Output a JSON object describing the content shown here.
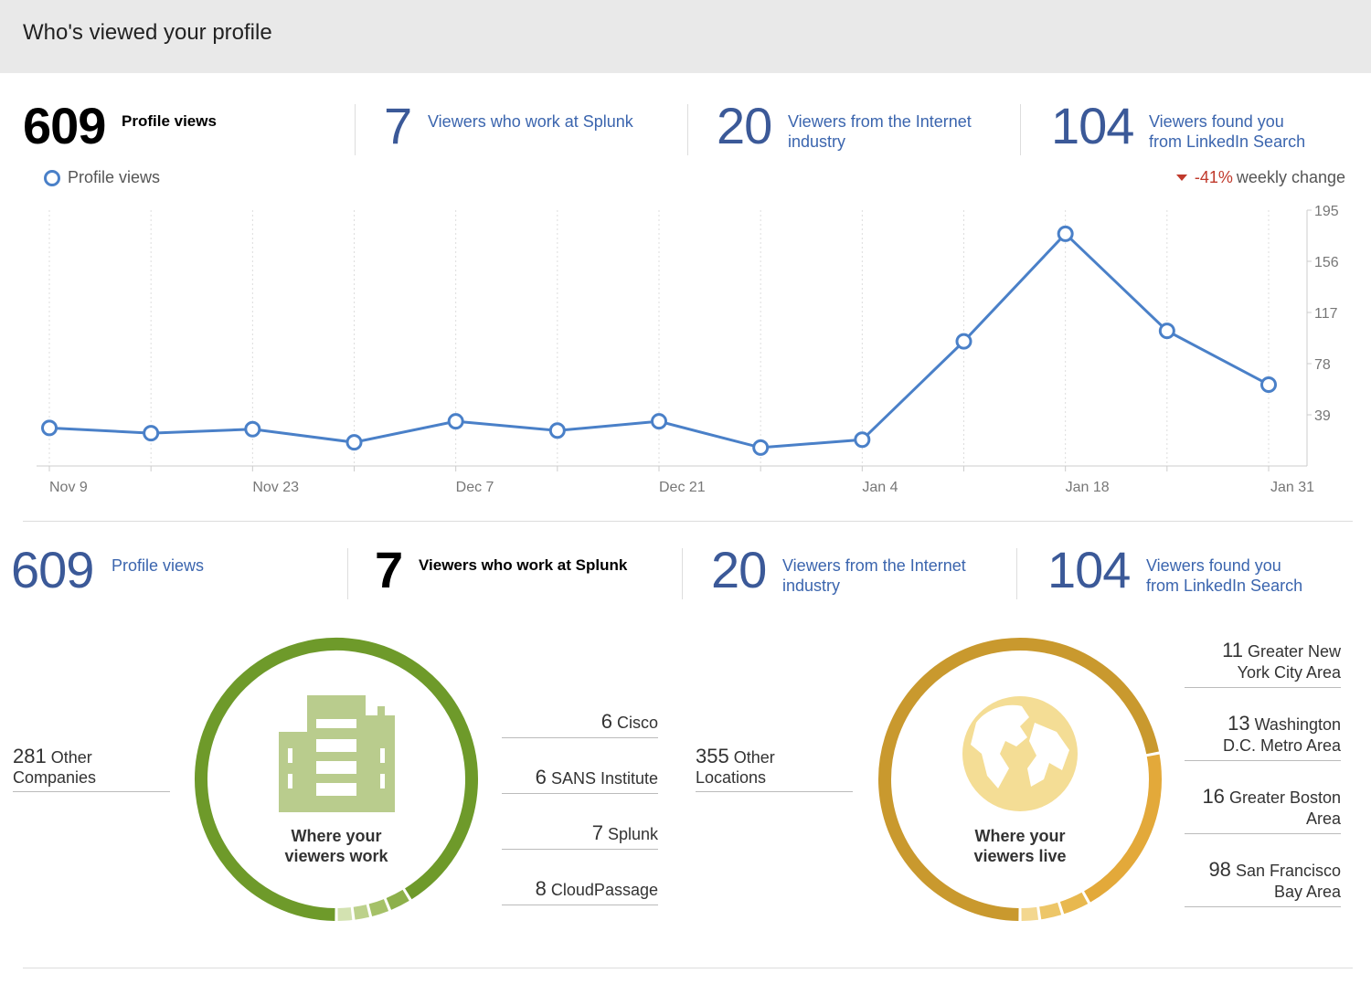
{
  "header": {
    "title": "Who's viewed your profile"
  },
  "stats": {
    "profile_views": {
      "number": "609",
      "label": "Profile views"
    },
    "splunk": {
      "number": "7",
      "label": "Viewers who work at Splunk"
    },
    "internet": {
      "number": "20",
      "label_line1": "Viewers from the Internet",
      "label_line2": "industry"
    },
    "search": {
      "number": "104",
      "label_line1": "Viewers found you",
      "label_line2": "from LinkedIn Search"
    }
  },
  "legend": {
    "label": "Profile views"
  },
  "weekly_change": {
    "value": "-41%",
    "label": "weekly change"
  },
  "chart_data": {
    "type": "line",
    "x": [
      "Nov 9",
      "Nov 16",
      "Nov 23",
      "Nov 30",
      "Dec 7",
      "Dec 14",
      "Dec 21",
      "Dec 28",
      "Jan 4",
      "Jan 11",
      "Jan 18",
      "Jan 25",
      "Jan 31"
    ],
    "x_tick_labels": [
      "Nov 9",
      "Nov 23",
      "Dec 7",
      "Dec 21",
      "Jan 4",
      "Jan 18",
      "Jan 31"
    ],
    "series": [
      {
        "name": "Profile views",
        "values": [
          29,
          25,
          28,
          18,
          34,
          27,
          34,
          14,
          20,
          95,
          177,
          103,
          62
        ]
      }
    ],
    "y_ticks": [
      39,
      78,
      117,
      156,
      195
    ],
    "ylim": [
      0,
      195
    ],
    "grid": "vertical dotted",
    "colors": {
      "line": "#4a80c8",
      "grid": "#dddddd"
    }
  },
  "work": {
    "title_line1": "Where your",
    "title_line2": "viewers work",
    "other": {
      "number": "281",
      "label_line1": "Other",
      "label_line2": "Companies"
    },
    "items": [
      {
        "number": "6",
        "label": "Cisco"
      },
      {
        "number": "6",
        "label": "SANS Institute"
      },
      {
        "number": "7",
        "label": "Splunk"
      },
      {
        "number": "8",
        "label": "CloudPassage"
      }
    ],
    "color": "#6e9a2a",
    "icon_color": "#b9cc8d"
  },
  "live": {
    "title_line1": "Where your",
    "title_line2": "viewers live",
    "other": {
      "number": "355",
      "label_line1": "Other",
      "label_line2": "Locations"
    },
    "items": [
      {
        "number": "11",
        "label_line1": "Greater New",
        "label_line2": "York City Area"
      },
      {
        "number": "13",
        "label_line1": "Washington",
        "label_line2": "D.C. Metro Area"
      },
      {
        "number": "16",
        "label_line1": "Greater Boston",
        "label_line2": "Area"
      },
      {
        "number": "98",
        "label_line1": "San Francisco",
        "label_line2": "Bay Area"
      }
    ],
    "color": "#c9992e",
    "icon_color": "#f4dd95"
  }
}
